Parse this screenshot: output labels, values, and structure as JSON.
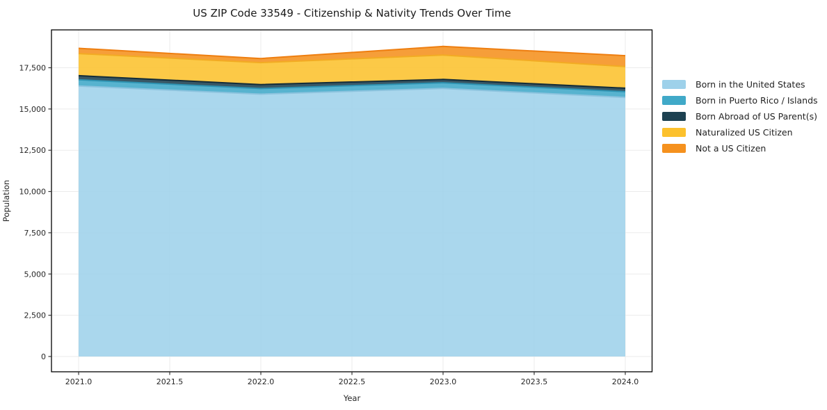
{
  "figure": {
    "background": "#ffffff"
  },
  "chart_data": {
    "type": "area",
    "stacked": true,
    "title": "US ZIP Code 33549 - Citizenship & Nativity Trends Over Time",
    "xlabel": "Year",
    "ylabel": "Population",
    "x": [
      2021,
      2022,
      2023,
      2024
    ],
    "series": [
      {
        "name": "Born in the United States",
        "color": "#9ed1ea",
        "edge_color": "#8cc3de",
        "values": [
          16390,
          15900,
          16250,
          15700
        ]
      },
      {
        "name": "Born in Puerto Rico / Islands",
        "color": "#40a9c8",
        "edge_color": "#2e93b2",
        "values": [
          380,
          340,
          340,
          350
        ]
      },
      {
        "name": "Born Abroad of US Parent(s)",
        "color": "#1d4151",
        "edge_color": "#132c39",
        "values": [
          250,
          240,
          200,
          210
        ]
      },
      {
        "name": "Naturalized US Citizen",
        "color": "#fcc12d",
        "edge_color": "#f2ab23",
        "values": [
          1340,
          1330,
          1480,
          1310
        ]
      },
      {
        "name": "Not a US Citizen",
        "color": "#f5911e",
        "edge_color": "#ee7e10",
        "values": [
          320,
          250,
          520,
          660
        ]
      }
    ],
    "x_ticks": {
      "values": [
        2021,
        2021.5,
        2022,
        2022.5,
        2023,
        2023.5,
        2024
      ],
      "labels": [
        "2021.0",
        "2021.5",
        "2022.0",
        "2022.5",
        "2023.0",
        "2023.5",
        "2024.0"
      ]
    },
    "y_ticks": {
      "values": [
        0,
        2500,
        5000,
        7500,
        10000,
        12500,
        15000,
        17500
      ],
      "labels": [
        "0",
        "2,500",
        "5,000",
        "7,500",
        "10,000",
        "12,500",
        "15,000",
        "17,500"
      ]
    },
    "xlim": [
      2020.851,
      2024.147
    ],
    "ylim": [
      -926,
      19794
    ],
    "grid": true,
    "legend_position": "right-outside",
    "fill_opacity": 0.88,
    "grid_color": "#ebebeb",
    "axis_color": "#000000",
    "tick_color": "#333333",
    "tick_label_color": "#262626"
  }
}
